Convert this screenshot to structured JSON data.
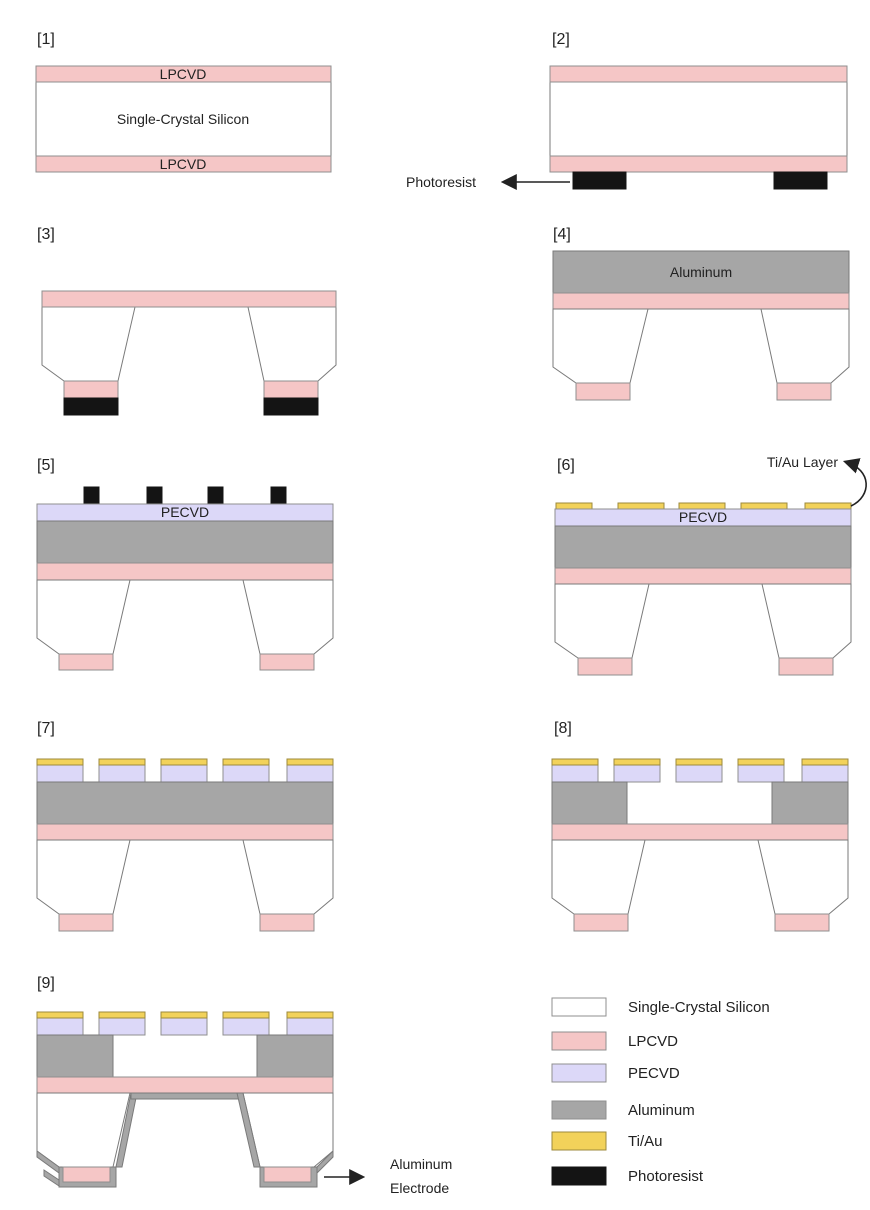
{
  "steps": [
    "[1]",
    "[2]",
    "[3]",
    "[4]",
    "[5]",
    "[6]",
    "[7]",
    "[8]",
    "[9]"
  ],
  "labels": {
    "lpcvd": "LPCVD",
    "silicon": "Single-Crystal Silicon",
    "aluminum": "Aluminum",
    "pecvd": "PECVD"
  },
  "annotations": {
    "photoresist": "Photoresist",
    "tiau_layer": "Ti/Au Layer",
    "electrode_line1": "Aluminum",
    "electrode_line2": "Electrode"
  },
  "legend": [
    {
      "label": "Single-Crystal Silicon",
      "color": "#ffffff"
    },
    {
      "label": "LPCVD",
      "color": "#f5c6c6"
    },
    {
      "label": "PECVD",
      "color": "#dcd8f8"
    },
    {
      "label": "Aluminum",
      "color": "#a6a6a6"
    },
    {
      "label": "Ti/Au",
      "color": "#f2d25a"
    },
    {
      "label": "Photoresist",
      "color": "#141414"
    }
  ]
}
